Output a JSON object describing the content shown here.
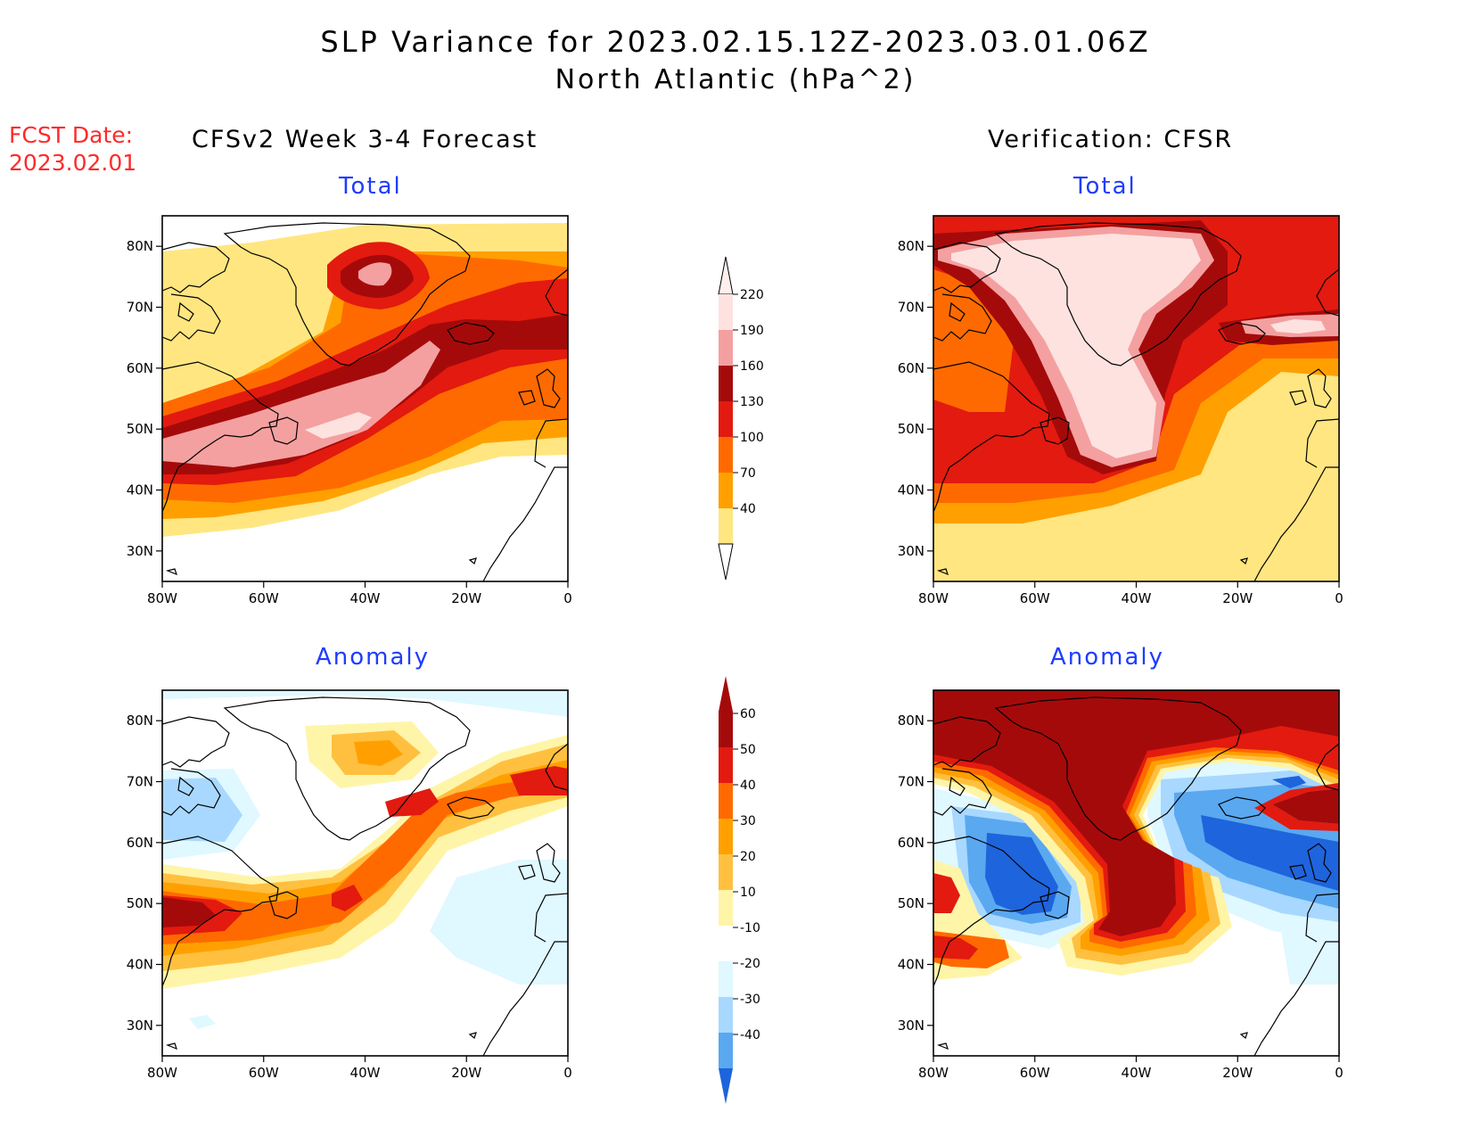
{
  "title": "SLP Variance for 2023.02.15.12Z-2023.03.01.06Z",
  "subtitle": "North Atlantic (hPa^2)",
  "fcst_date_label": "FCST Date:",
  "fcst_date_value": "2023.02.01",
  "left_column_title": "CFSv2 Week 3-4 Forecast",
  "right_column_title": "Verification: CFSR",
  "panels": {
    "fcst_total": {
      "label": "Total"
    },
    "verif_total": {
      "label": "Total"
    },
    "fcst_anomaly": {
      "label": "Anomaly"
    },
    "verif_anomaly": {
      "label": "Anomaly"
    }
  },
  "map_axes": {
    "lon_ticks": [
      "80W",
      "60W",
      "40W",
      "20W",
      "0"
    ],
    "lat_ticks": [
      "80N",
      "70N",
      "60N",
      "50N",
      "40N",
      "30N"
    ],
    "lon_range": [
      -80,
      0
    ],
    "lat_range": [
      25,
      85
    ]
  },
  "colorbars": {
    "total": {
      "levels": [
        "220",
        "190",
        "160",
        "130",
        "100",
        "70",
        "40"
      ],
      "colors": [
        "#fde2e0",
        "#f4a0a0",
        "#a50a0a",
        "#e31a0f",
        "#ff6a00",
        "#ffa000",
        "#ffe680"
      ]
    },
    "anomaly": {
      "levels": [
        "60",
        "50",
        "40",
        "30",
        "20",
        "10",
        "-10",
        "-20",
        "-30",
        "-40"
      ],
      "colors": [
        "#a50a0a",
        "#e31a0f",
        "#ff6a00",
        "#ffa000",
        "#ffc040",
        "#fff5a8",
        "#ffffff",
        "#e0f8ff",
        "#a8d8ff",
        "#5aa8f0",
        "#1e64dc"
      ]
    }
  }
}
